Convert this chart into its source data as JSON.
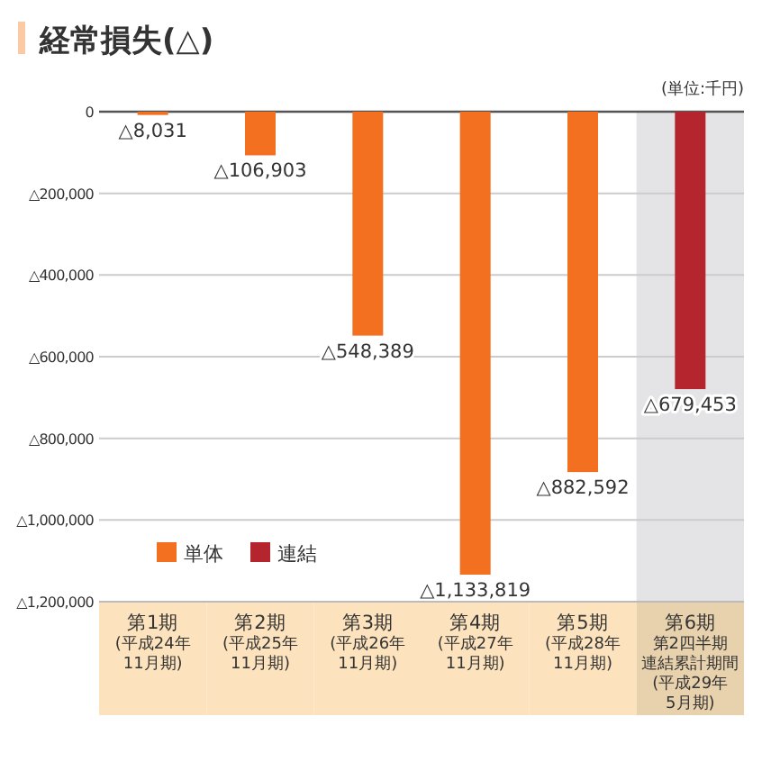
{
  "chart_data": {
    "type": "bar",
    "title": "経常損失(△)",
    "annotations": [
      "(単位:千円)"
    ],
    "categories": [
      "第1期(平成24年11月期)",
      "第2期(平成25年11月期)",
      "第3期(平成26年11月期)",
      "第4期(平成27年11月期)",
      "第5期(平成28年11月期)",
      "第6期第2四半期連結累計期間(平成29年5月期)"
    ],
    "series": [
      {
        "name": "単体",
        "color": "#f37021",
        "values": [
          8031,
          106903,
          548389,
          1133819,
          882592,
          null
        ],
        "value_labels": [
          "△8,031",
          "△106,903",
          "△548,389",
          "△1,133,819",
          "△882,592",
          null
        ]
      },
      {
        "name": "連結",
        "color": "#b5252e",
        "values": [
          null,
          null,
          null,
          null,
          null,
          679453
        ],
        "value_labels": [
          null,
          null,
          null,
          null,
          null,
          "△679,453"
        ]
      }
    ],
    "ylim": [
      1200000,
      0
    ],
    "yticks": [
      0,
      {
        "value": 200000,
        "label": "△200,000"
      },
      {
        "value": 400000,
        "label": "△400,000"
      },
      {
        "value": 600000,
        "label": "△600,000"
      },
      {
        "value": 800000,
        "label": "△800,000"
      },
      {
        "value": 1000000,
        "label": "△1,000,000"
      },
      {
        "value": 1200000,
        "label": "△1,200,000"
      }
    ],
    "grid": "y",
    "legend": "bottom left",
    "bands": [
      {
        "axis": "x",
        "from": "第6期第2四半期連結累計期間(平成29年5月期)",
        "to": "第6期第2四半期連結累計期間(平成29年5月期)",
        "color": "#e4e4e6"
      }
    ]
  }
}
